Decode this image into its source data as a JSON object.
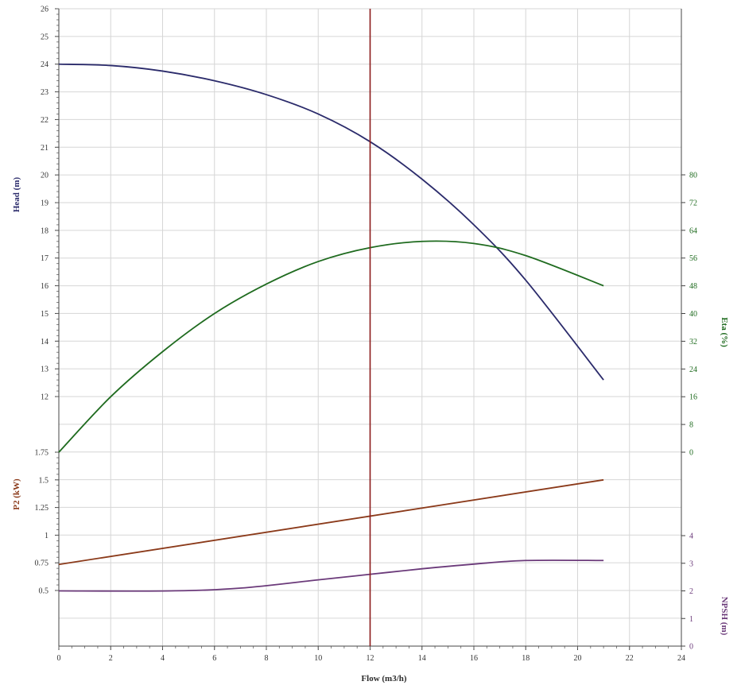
{
  "chart_data": {
    "type": "line",
    "x_axis": {
      "label": "Flow (m3/h)",
      "range": [
        0,
        24
      ],
      "ticks": [
        "0",
        "2",
        "4",
        "6",
        "8",
        "10",
        "12",
        "14",
        "16",
        "18",
        "20",
        "22",
        "24"
      ]
    },
    "head_axis": {
      "label": "Head (m)",
      "range": [
        11,
        26
      ],
      "ticks": [
        "12",
        "13",
        "14",
        "15",
        "16",
        "17",
        "18",
        "19",
        "20",
        "21",
        "22",
        "23",
        "24",
        "25",
        "26"
      ],
      "color": "#2b2b6b"
    },
    "eta_axis": {
      "label": "Eta (%)",
      "range": [
        0,
        80
      ],
      "ticks": [
        "0",
        "8",
        "16",
        "24",
        "32",
        "40",
        "48",
        "56",
        "64",
        "72",
        "80"
      ],
      "color": "#1f6b1f"
    },
    "p2_axis": {
      "label": "P2 (kW)",
      "range": [
        0.5,
        1.75
      ],
      "ticks": [
        "0.5",
        "0.75",
        "1",
        "1.25",
        "1.5",
        "1.75"
      ],
      "color": "#8b3a1a"
    },
    "npsh_axis": {
      "label": "NPSH (m)",
      "range": [
        0,
        4
      ],
      "ticks": [
        "0",
        "1",
        "2",
        "3",
        "4"
      ],
      "color": "#6b3a7a"
    },
    "duty_point_flow": 12,
    "duty_line_color": "#8b1a1a",
    "grid": true,
    "series": [
      {
        "axis": "head",
        "color": "#2b2b6b",
        "x": [
          0,
          2,
          4,
          6,
          8,
          10,
          12,
          14,
          16,
          18,
          21
        ],
        "y": [
          24.0,
          23.95,
          23.75,
          23.4,
          22.9,
          22.2,
          21.2,
          19.85,
          18.2,
          16.2,
          12.6
        ]
      },
      {
        "axis": "eta",
        "color": "#1f6b1f",
        "x": [
          0,
          2,
          4,
          6,
          8,
          10,
          12,
          14,
          16,
          18,
          21
        ],
        "y": [
          0,
          16,
          29,
          40,
          48.5,
          55,
          59,
          60.8,
          60.2,
          56.7,
          48
        ]
      },
      {
        "axis": "p2",
        "color": "#8b3a1a",
        "x": [
          0,
          21
        ],
        "y": [
          0.735,
          1.5
        ]
      },
      {
        "axis": "npsh",
        "color": "#6b3a7a",
        "x": [
          0,
          4.3,
          7,
          10,
          12,
          14,
          16,
          18,
          21
        ],
        "y": [
          2.0,
          2.0,
          2.1,
          2.4,
          2.6,
          2.8,
          2.97,
          3.1,
          3.1
        ]
      }
    ]
  }
}
